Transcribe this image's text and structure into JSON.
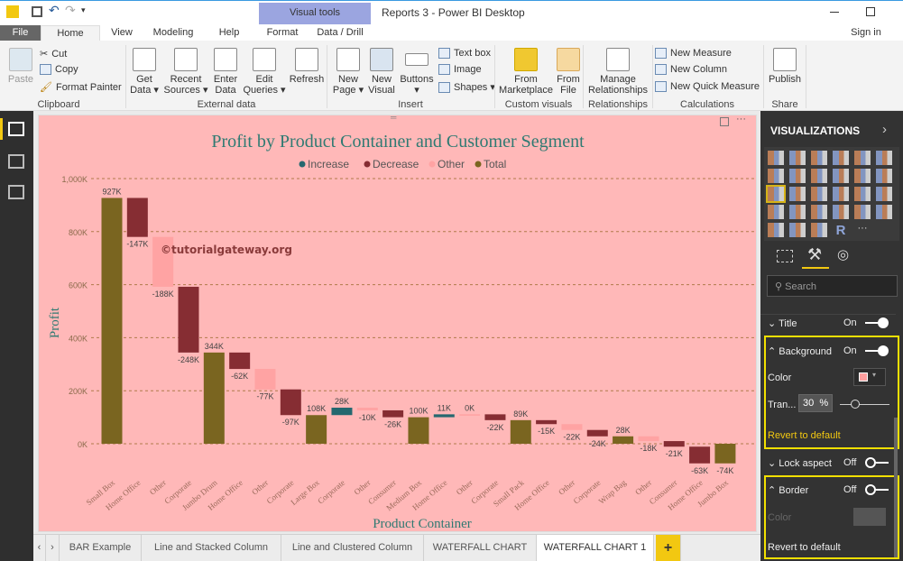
{
  "window": {
    "title": "Reports 3 - Power BI Desktop",
    "visual_tools": "Visual tools",
    "sign_in": "Sign in"
  },
  "tabs": {
    "file": "File",
    "home": "Home",
    "view": "View",
    "modeling": "Modeling",
    "help": "Help",
    "format": "Format",
    "data_drill": "Data / Drill"
  },
  "ribbon": {
    "clipboard": {
      "label": "Clipboard",
      "paste": "Paste",
      "cut": "Cut",
      "copy": "Copy",
      "format_painter": "Format Painter"
    },
    "external": {
      "label": "External data",
      "get_data": "Get Data ▾",
      "recent": "Recent Sources ▾",
      "enter": "Enter Data",
      "edit": "Edit Queries ▾",
      "refresh": "Refresh"
    },
    "insert": {
      "label": "Insert",
      "new_page": "New Page ▾",
      "new_visual": "New Visual",
      "buttons": "Buttons ▾",
      "text_box": "Text box",
      "image": "Image",
      "shapes": "Shapes ▾"
    },
    "custom": {
      "label": "Custom visuals",
      "marketplace": "From Marketplace",
      "file": "From File"
    },
    "relationships": {
      "label": "Relationships",
      "manage": "Manage Relationships"
    },
    "calculations": {
      "label": "Calculations",
      "new_measure": "New Measure",
      "new_column": "New Column",
      "new_quick": "New Quick Measure"
    },
    "share": {
      "label": "Share",
      "publish": "Publish"
    }
  },
  "bottom_tabs": [
    "BAR Example",
    "Line and Stacked Column",
    "Line and Clustered Column",
    "WATERFALL CHART",
    "WATERFALL CHART 1"
  ],
  "add_tab": "+",
  "pane": {
    "header": "VISUALIZATIONS",
    "viz_icons": [
      "stacked-bar",
      "stacked-column",
      "clustered-bar",
      "clustered-column",
      "100-bar",
      "100-column",
      "line",
      "area",
      "stacked-area",
      "line-stacked-column",
      "line-clustered-column",
      "ribbon",
      "waterfall",
      "scatter",
      "pie",
      "donut",
      "treemap",
      "map",
      "filled-map",
      "funnel",
      "gauge",
      "card",
      "multi-row-card",
      "kpi",
      "slicer",
      "table",
      "matrix",
      "r-visual",
      "more"
    ],
    "r_label": "R",
    "more_label": "···",
    "search_placeholder": "Search",
    "title": {
      "label": "Title",
      "state": "On"
    },
    "background": {
      "label": "Background",
      "state": "On",
      "color_label": "Color",
      "color": "#ff9f9f",
      "transparency_label": "Tran...",
      "transparency": "30",
      "percent": "%",
      "revert": "Revert to default"
    },
    "lock_aspect": {
      "label": "Lock aspect",
      "state": "Off"
    },
    "border": {
      "label": "Border",
      "state": "Off",
      "color_label": "Color",
      "revert": "Revert to default"
    }
  },
  "watermark": "©tutorialgateway.org",
  "colors": {
    "total": "#7a6520",
    "decrease": "#862d33",
    "increase": "#24686f",
    "other": "#ffa3a3",
    "bg": "#ffb8b8"
  },
  "chart_data": {
    "type": "waterfall",
    "title": "Profit by Product Container and Customer Segment",
    "xlabel": "Product Container",
    "ylabel": "Profit",
    "legend": [
      "Increase",
      "Decrease",
      "Other",
      "Total"
    ],
    "legend_position": "top-center",
    "ylim": [
      0,
      1000
    ],
    "yticks": [
      "0K",
      "200K",
      "400K",
      "600K",
      "800K",
      "1,000K"
    ],
    "yticks_values": [
      0,
      200,
      400,
      600,
      800,
      1000
    ],
    "categories": [
      "Small Box",
      "Home Office",
      "Other",
      "Corporate",
      "Jumbo Drum",
      "Home Office",
      "Other",
      "Corporate",
      "Large Box",
      "Corporate",
      "Other",
      "Consumer",
      "Medium Box",
      "Home Office",
      "Other",
      "Corporate",
      "Small Pack",
      "Home Office",
      "Other",
      "Corporate",
      "Wrap Bag",
      "Other",
      "Consumer",
      "Home Office",
      "Jumbo Box"
    ],
    "kinds": [
      "total",
      "decrease",
      "other",
      "decrease",
      "total",
      "decrease",
      "other",
      "decrease",
      "total",
      "increase",
      "other",
      "decrease",
      "total",
      "increase",
      "other",
      "decrease",
      "total",
      "decrease",
      "other",
      "decrease",
      "total",
      "other",
      "decrease",
      "decrease",
      "total"
    ],
    "values": [
      927,
      -147,
      -188,
      -248,
      344,
      -62,
      -77,
      -97,
      108,
      28,
      -10,
      -26,
      100,
      11,
      0,
      -22,
      89,
      -15,
      -22,
      -24,
      28,
      -18,
      -21,
      -63,
      -74
    ],
    "labels": [
      "927K",
      "-147K",
      "-188K",
      "-248K",
      "344K",
      "-62K",
      "-77K",
      "-97K",
      "108K",
      "28K",
      "-10K",
      "-26K",
      "100K",
      "11K",
      "0K",
      "-22K",
      "89K",
      "-15K",
      "-22K",
      "-24K",
      "28K",
      "-18K",
      "-21K",
      "-63K",
      "-74K"
    ]
  }
}
